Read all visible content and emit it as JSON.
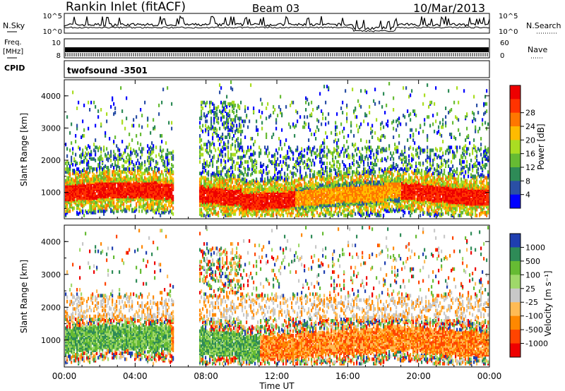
{
  "header": {
    "station": "Rankin Inlet (fitACF)",
    "beam": "Beam 03",
    "date": "10/Mar/2013"
  },
  "housekeeping": {
    "nsky_label": "N.Sky",
    "nsearch_label": "N.Search",
    "noise_ticks": [
      "10^5",
      "10^0"
    ],
    "freq_label_1": "Freq.",
    "freq_label_2": "[MHz]",
    "freq_ticks": [
      "10",
      "8"
    ],
    "nave_label": "Nave",
    "nave_ticks": [
      "60",
      "0"
    ],
    "cpid_label": "CPID",
    "cpid_value": "twofsound -3501"
  },
  "colors": {
    "power_scale": [
      "#0000ff",
      "#2a4fa5",
      "#2e8b57",
      "#66bb33",
      "#aadd22",
      "#ffbb00",
      "#ff7700",
      "#ff3300",
      "#ee0000"
    ],
    "velocity_scale": [
      "#1f3fb0",
      "#2e8b57",
      "#66bb33",
      "#9fd86a",
      "#c8c8c8",
      "#ffbb55",
      "#ff8800",
      "#ff4400",
      "#ee0000"
    ]
  },
  "chart_data": [
    {
      "type": "heatmap",
      "title": "Power",
      "ylabel": "Slant Range [km]",
      "ylim": [
        180,
        4500
      ],
      "yticks": [
        "1000",
        "2000",
        "3000",
        "4000"
      ],
      "xlim": [
        "00:00",
        "24:00"
      ],
      "colorbar": {
        "label": "Power [dB]",
        "ticks": [
          "4",
          "8",
          "12",
          "16",
          "20",
          "24",
          "28"
        ]
      }
    },
    {
      "type": "heatmap",
      "title": "Velocity",
      "ylabel": "Slant Range [km]",
      "ylim": [
        180,
        4500
      ],
      "yticks": [
        "1000",
        "2000",
        "3000",
        "4000"
      ],
      "xlabel": "Time UT",
      "xticks": [
        "00:00",
        "04:00",
        "08:00",
        "12:00",
        "16:00",
        "20:00",
        "00:00"
      ],
      "colorbar": {
        "label": "Velocity [m s⁻¹]",
        "ticks": [
          "1000",
          "500",
          "100",
          "25",
          "-25",
          "-100",
          "-500",
          "-1000"
        ]
      }
    }
  ]
}
